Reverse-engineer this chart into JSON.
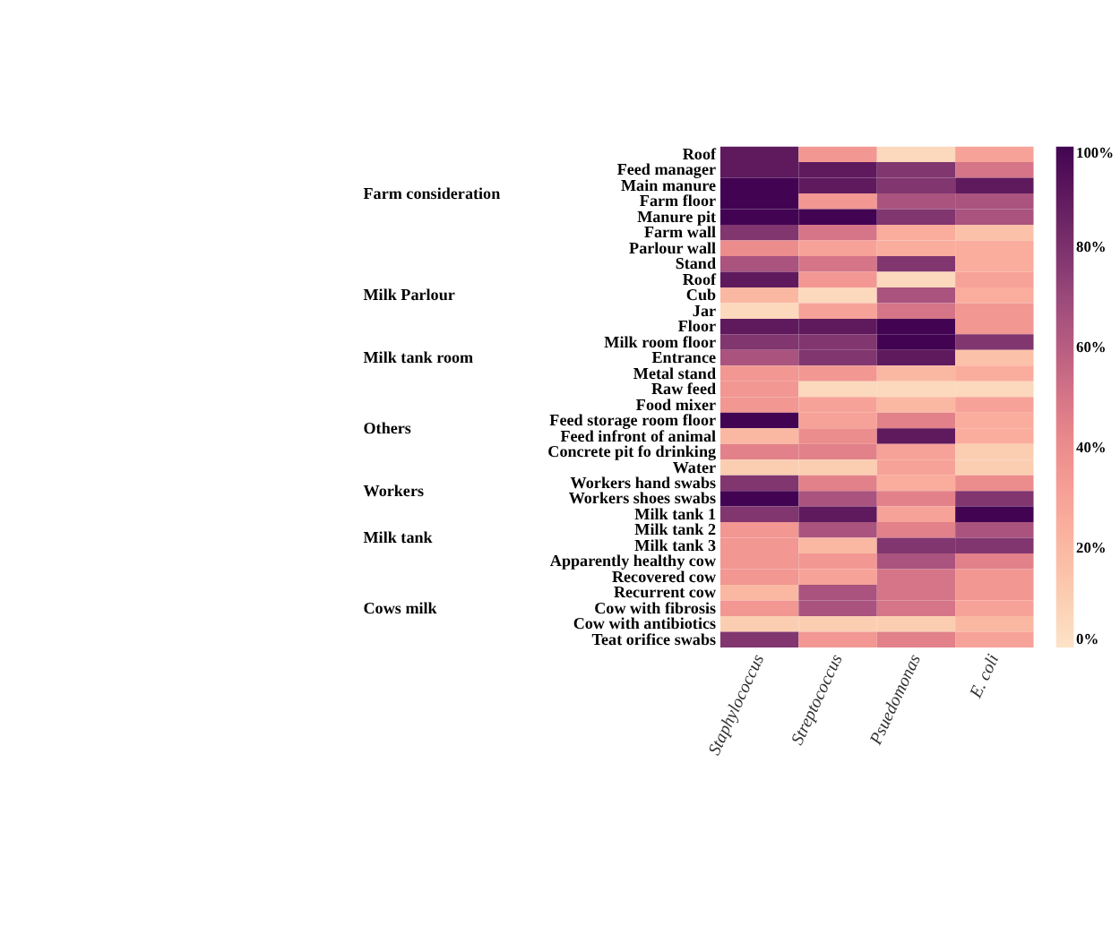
{
  "chart_data": {
    "type": "heatmap",
    "categories": [
      "Staphylococcus",
      "Streptococcus",
      "Psuedomonas",
      "E. coli"
    ],
    "y_categories": [
      "Roof",
      "Feed manager",
      "Main manure",
      "Farm floor",
      "Manure pit",
      "Farm wall",
      "Parlour wall",
      "Stand",
      "Roof",
      "Cub",
      "Jar",
      "Floor",
      "Milk room floor",
      "Entrance",
      "Metal stand",
      "Raw feed",
      "Food mixer",
      "Feed storage room floor",
      "Feed infront of animal",
      "Concrete pit fo drinking",
      "Water",
      "Workers hand swabs",
      "Workers shoes swabs",
      "Milk tank 1",
      "Milk tank 2",
      "Milk tank 3",
      "Apparently healthy cow",
      "Recovered cow",
      "Recurrent cow",
      "Cow with fibrosis",
      "Cow with antibiotics",
      "Teat orifice swabs"
    ],
    "cells": [
      [
        90,
        35,
        5,
        30
      ],
      [
        90,
        90,
        78,
        50
      ],
      [
        100,
        90,
        78,
        90
      ],
      [
        100,
        35,
        65,
        65
      ],
      [
        100,
        100,
        78,
        65
      ],
      [
        78,
        50,
        25,
        15
      ],
      [
        40,
        30,
        25,
        25
      ],
      [
        65,
        50,
        78,
        25
      ],
      [
        90,
        35,
        5,
        30
      ],
      [
        20,
        5,
        65,
        25
      ],
      [
        5,
        30,
        50,
        35
      ],
      [
        90,
        90,
        100,
        35
      ],
      [
        78,
        78,
        100,
        78
      ],
      [
        65,
        78,
        90,
        15
      ],
      [
        35,
        35,
        20,
        25
      ],
      [
        35,
        5,
        5,
        5
      ],
      [
        35,
        30,
        20,
        30
      ],
      [
        100,
        30,
        45,
        25
      ],
      [
        20,
        40,
        90,
        25
      ],
      [
        45,
        45,
        30,
        10
      ],
      [
        10,
        10,
        30,
        10
      ],
      [
        78,
        45,
        25,
        40
      ],
      [
        100,
        65,
        45,
        78
      ],
      [
        78,
        90,
        30,
        100
      ],
      [
        35,
        65,
        45,
        65
      ],
      [
        35,
        20,
        78,
        78
      ],
      [
        35,
        35,
        65,
        45
      ],
      [
        35,
        30,
        50,
        35
      ],
      [
        20,
        65,
        50,
        35
      ],
      [
        35,
        65,
        50,
        30
      ],
      [
        10,
        10,
        10,
        20
      ],
      [
        78,
        35,
        45,
        30
      ]
    ],
    "clim": [
      0,
      100
    ],
    "cticks": [
      {
        "value": 0,
        "label": "0%"
      },
      {
        "value": 20,
        "label": "20%"
      },
      {
        "value": 40,
        "label": "40%"
      },
      {
        "value": 60,
        "label": "60%"
      },
      {
        "value": 80,
        "label": "80%"
      },
      {
        "value": 100,
        "label": "100%"
      }
    ],
    "annotations": [
      "Farm consideration",
      "Milk Parlour",
      "Milk tank room",
      "Others",
      "Workers",
      "Milk tank",
      "Cows milk"
    ]
  }
}
